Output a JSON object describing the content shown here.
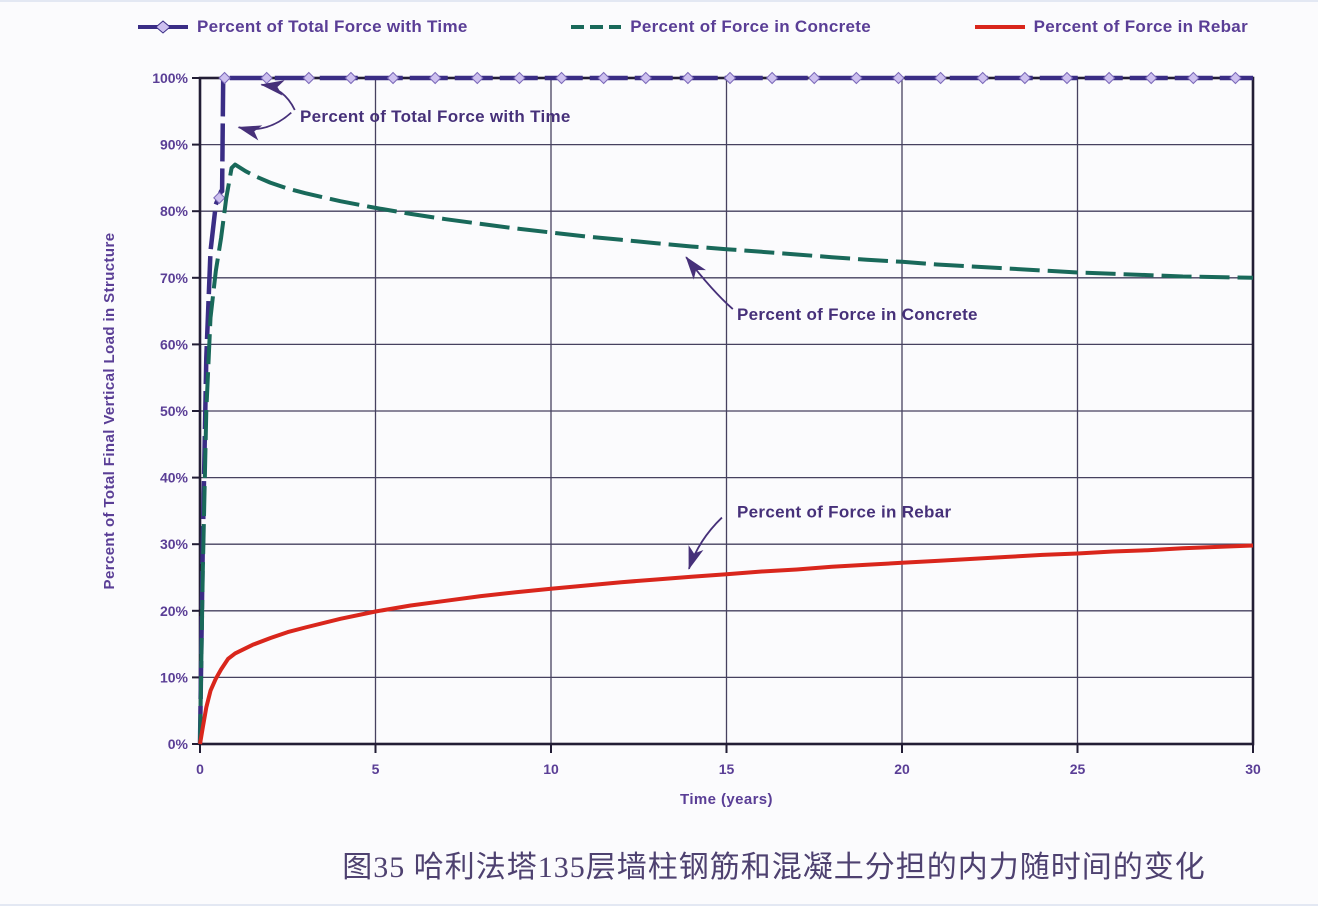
{
  "page": {
    "background": "#fbfbfd",
    "caption": "图35 哈利法塔135层墙柱钢筋和混凝土分担的内力随时间的变化"
  },
  "legend": {
    "items": [
      {
        "label": "Percent of Total Force with Time"
      },
      {
        "label": "Percent of Force in Concrete"
      },
      {
        "label": "Percent of Force in Rebar"
      }
    ]
  },
  "chart_data": {
    "type": "line",
    "title": "",
    "xlabel": "Time (years)",
    "ylabel": "Percent of Total Final Vertical Load in Structure",
    "xlim": [
      0,
      30
    ],
    "ylim": [
      0,
      100
    ],
    "grid": true,
    "legend_position": "top",
    "x_ticks": {
      "values": [
        0,
        5,
        10,
        15,
        20,
        25,
        30
      ],
      "labels": [
        "0",
        "5",
        "10",
        "15",
        "20",
        "25",
        "30"
      ]
    },
    "y_ticks": {
      "values": [
        0,
        10,
        20,
        30,
        40,
        50,
        60,
        70,
        80,
        90,
        100
      ],
      "labels": [
        "0%",
        "10%",
        "20%",
        "30%",
        "40%",
        "50%",
        "60%",
        "70%",
        "80%",
        "90%",
        "100%"
      ]
    },
    "colors": {
      "grid": "#46415f",
      "frame": "#221d35",
      "axis_text": "#5a3e96",
      "annotation_text": "#463079"
    },
    "series": [
      {
        "key": "total-force",
        "name": "Percent of Total Force with Time",
        "color": "#3a2d85",
        "width": 4.5,
        "dash": "38 7",
        "marker": "diamond",
        "marker_fill": "#cdc0ef",
        "marker_stroke": "#7a68b8",
        "marker_start": 0.7,
        "marker_step": 1.2,
        "extra_marker_points": [
          [
            0.55,
            82
          ]
        ],
        "points": [
          [
            0,
            0
          ],
          [
            0.08,
            30
          ],
          [
            0.18,
            58
          ],
          [
            0.3,
            74
          ],
          [
            0.45,
            81
          ],
          [
            0.6,
            83
          ],
          [
            0.63,
            83
          ],
          [
            0.66,
            100
          ],
          [
            2,
            100
          ],
          [
            5,
            100
          ],
          [
            10,
            100
          ],
          [
            15,
            100
          ],
          [
            20,
            100
          ],
          [
            25,
            100
          ],
          [
            30,
            100
          ]
        ]
      },
      {
        "key": "concrete",
        "name": "Percent of Force in Concrete",
        "color": "#19695a",
        "width": 4,
        "dash": "30 8",
        "marker": null,
        "points": [
          [
            0,
            0
          ],
          [
            0.08,
            26
          ],
          [
            0.18,
            50
          ],
          [
            0.3,
            64
          ],
          [
            0.45,
            71
          ],
          [
            0.6,
            76
          ],
          [
            0.75,
            82
          ],
          [
            0.9,
            86.5
          ],
          [
            1.0,
            87
          ],
          [
            1.3,
            86
          ],
          [
            1.6,
            85.2
          ],
          [
            2,
            84.3
          ],
          [
            2.5,
            83.4
          ],
          [
            3,
            82.7
          ],
          [
            4,
            81.5
          ],
          [
            5,
            80.5
          ],
          [
            6,
            79.6
          ],
          [
            7,
            78.8
          ],
          [
            8,
            78.1
          ],
          [
            9,
            77.4
          ],
          [
            10,
            76.8
          ],
          [
            11,
            76.2
          ],
          [
            12,
            75.7
          ],
          [
            13,
            75.2
          ],
          [
            14,
            74.7
          ],
          [
            15,
            74.3
          ],
          [
            16,
            73.9
          ],
          [
            17,
            73.5
          ],
          [
            18,
            73.1
          ],
          [
            19,
            72.7
          ],
          [
            20,
            72.4
          ],
          [
            21,
            72.0
          ],
          [
            22,
            71.7
          ],
          [
            23,
            71.4
          ],
          [
            24,
            71.1
          ],
          [
            25,
            70.8
          ],
          [
            26,
            70.6
          ],
          [
            27,
            70.4
          ],
          [
            28,
            70.2
          ],
          [
            29,
            70.1
          ],
          [
            30,
            70
          ]
        ]
      },
      {
        "key": "rebar",
        "name": "Percent of Force in Rebar",
        "color": "#d9261c",
        "width": 4,
        "dash": null,
        "marker": null,
        "points": [
          [
            0,
            0
          ],
          [
            0.08,
            2.5
          ],
          [
            0.18,
            5.5
          ],
          [
            0.3,
            8
          ],
          [
            0.45,
            9.8
          ],
          [
            0.6,
            11.2
          ],
          [
            0.8,
            12.8
          ],
          [
            1,
            13.6
          ],
          [
            1.5,
            14.9
          ],
          [
            2,
            15.9
          ],
          [
            2.5,
            16.8
          ],
          [
            3,
            17.5
          ],
          [
            4,
            18.8
          ],
          [
            5,
            19.9
          ],
          [
            6,
            20.8
          ],
          [
            7,
            21.5
          ],
          [
            8,
            22.2
          ],
          [
            9,
            22.8
          ],
          [
            10,
            23.3
          ],
          [
            11,
            23.8
          ],
          [
            12,
            24.3
          ],
          [
            13,
            24.7
          ],
          [
            14,
            25.1
          ],
          [
            15,
            25.5
          ],
          [
            16,
            25.9
          ],
          [
            17,
            26.2
          ],
          [
            18,
            26.6
          ],
          [
            19,
            26.9
          ],
          [
            20,
            27.2
          ],
          [
            21,
            27.5
          ],
          [
            22,
            27.8
          ],
          [
            23,
            28.1
          ],
          [
            24,
            28.4
          ],
          [
            25,
            28.6
          ],
          [
            26,
            28.9
          ],
          [
            27,
            29.1
          ],
          [
            28,
            29.4
          ],
          [
            29,
            29.6
          ],
          [
            30,
            29.8
          ]
        ]
      }
    ],
    "annotations": [
      {
        "key": "total-force",
        "text": "Percent of Total Force with Time",
        "label_xy": [
          2.85,
          94.3
        ],
        "arrows": [
          {
            "from": [
              2.7,
              95.2
            ],
            "ctrl": [
              2.4,
              98.5
            ],
            "to": [
              1.75,
              99.0
            ]
          },
          {
            "from": [
              2.6,
              94.8
            ],
            "ctrl": [
              1.9,
              91.5
            ],
            "to": [
              1.1,
              92.6
            ]
          }
        ]
      },
      {
        "key": "concrete",
        "text": "Percent of Force in Concrete",
        "label_xy": [
          15.3,
          64.6
        ],
        "arrows": [
          {
            "from": [
              15.18,
              65.3
            ],
            "ctrl": [
              14.6,
              68.0
            ],
            "to": [
              13.85,
              73.1
            ]
          }
        ]
      },
      {
        "key": "rebar",
        "text": "Percent of Force in Rebar",
        "label_xy": [
          15.3,
          34.9
        ],
        "arrows": [
          {
            "from": [
              14.87,
              34.0
            ],
            "ctrl": [
              14.2,
              30.6
            ],
            "to": [
              13.93,
              26.3
            ]
          }
        ]
      }
    ]
  }
}
